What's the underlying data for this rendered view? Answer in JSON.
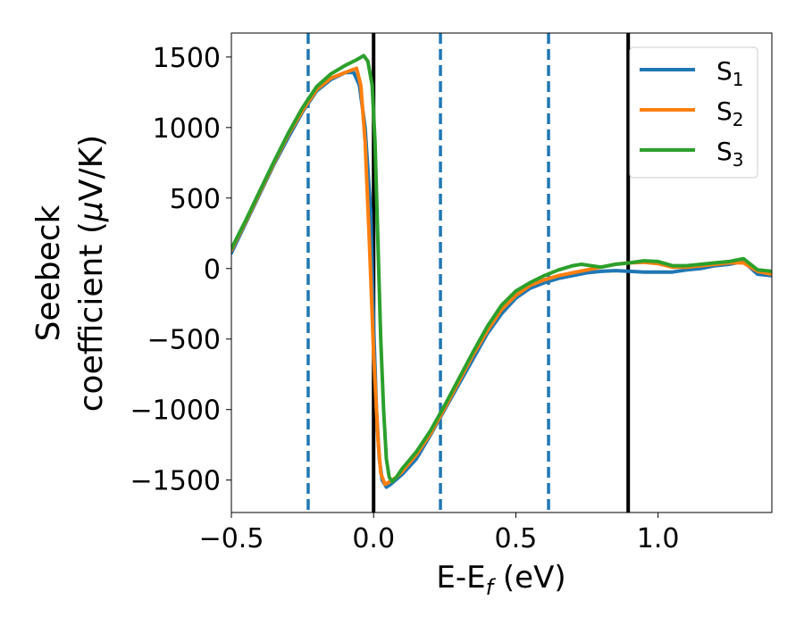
{
  "chart_data": {
    "type": "line",
    "xlabel": "E-E",
    "xlabel_sub": "f",
    "xlabel_unit": " (eV)",
    "ylabel_line1": "Seebeck",
    "ylabel_line2": "coefficient  (",
    "ylabel_mu": "μ",
    "ylabel_unit": "V/K)",
    "xlim": [
      -0.5,
      1.4
    ],
    "ylim": [
      -1730,
      1670
    ],
    "x_ticks": [
      {
        "value": -0.5,
        "label": "−0.5"
      },
      {
        "value": 0.0,
        "label": "0.0"
      },
      {
        "value": 0.5,
        "label": "0.5"
      },
      {
        "value": 1.0,
        "label": "1.0"
      }
    ],
    "y_ticks": [
      {
        "value": 1500,
        "label": "1500"
      },
      {
        "value": 1000,
        "label": "1000"
      },
      {
        "value": 500,
        "label": "500"
      },
      {
        "value": 0,
        "label": "0"
      },
      {
        "value": -500,
        "label": "−500"
      },
      {
        "value": -1000,
        "label": "−1000"
      },
      {
        "value": -1500,
        "label": "−1500"
      }
    ],
    "grid": false,
    "legend_position": "top-right",
    "vertical_lines": [
      {
        "x": -0.23,
        "style": "dashed",
        "color": "#1f77b4"
      },
      {
        "x": 0.0,
        "style": "solid",
        "color": "#000000"
      },
      {
        "x": 0.235,
        "style": "dashed",
        "color": "#1f77b4"
      },
      {
        "x": 0.615,
        "style": "dashed",
        "color": "#1f77b4"
      },
      {
        "x": 0.895,
        "style": "solid",
        "color": "#000000"
      }
    ],
    "series": [
      {
        "name": "S",
        "sub": "1",
        "color": "#1f77b4",
        "points": [
          [
            -0.5,
            110
          ],
          [
            -0.45,
            320
          ],
          [
            -0.4,
            530
          ],
          [
            -0.35,
            740
          ],
          [
            -0.3,
            930
          ],
          [
            -0.25,
            1110
          ],
          [
            -0.2,
            1260
          ],
          [
            -0.15,
            1340
          ],
          [
            -0.1,
            1390
          ],
          [
            -0.07,
            1390
          ],
          [
            -0.05,
            1300
          ],
          [
            -0.03,
            1000
          ],
          [
            -0.01,
            400
          ],
          [
            0.0,
            -400
          ],
          [
            0.01,
            -1000
          ],
          [
            0.02,
            -1350
          ],
          [
            0.03,
            -1500
          ],
          [
            0.045,
            -1550
          ],
          [
            0.06,
            -1530
          ],
          [
            0.1,
            -1460
          ],
          [
            0.15,
            -1350
          ],
          [
            0.2,
            -1180
          ],
          [
            0.25,
            -1000
          ],
          [
            0.3,
            -820
          ],
          [
            0.35,
            -640
          ],
          [
            0.4,
            -460
          ],
          [
            0.45,
            -320
          ],
          [
            0.5,
            -210
          ],
          [
            0.55,
            -140
          ],
          [
            0.6,
            -100
          ],
          [
            0.65,
            -70
          ],
          [
            0.7,
            -50
          ],
          [
            0.75,
            -30
          ],
          [
            0.8,
            -20
          ],
          [
            0.85,
            -15
          ],
          [
            0.9,
            -20
          ],
          [
            0.95,
            -25
          ],
          [
            1.0,
            -25
          ],
          [
            1.05,
            -25
          ],
          [
            1.1,
            -10
          ],
          [
            1.15,
            0
          ],
          [
            1.2,
            20
          ],
          [
            1.25,
            30
          ],
          [
            1.3,
            50
          ],
          [
            1.35,
            -40
          ],
          [
            1.4,
            -50
          ]
        ]
      },
      {
        "name": "S",
        "sub": "2",
        "color": "#ff7f0e",
        "points": [
          [
            -0.5,
            130
          ],
          [
            -0.45,
            330
          ],
          [
            -0.4,
            540
          ],
          [
            -0.35,
            750
          ],
          [
            -0.3,
            950
          ],
          [
            -0.25,
            1120
          ],
          [
            -0.2,
            1270
          ],
          [
            -0.15,
            1350
          ],
          [
            -0.1,
            1390
          ],
          [
            -0.06,
            1420
          ],
          [
            -0.045,
            1300
          ],
          [
            -0.03,
            900
          ],
          [
            -0.015,
            200
          ],
          [
            0.0,
            -600
          ],
          [
            0.015,
            -1200
          ],
          [
            0.025,
            -1450
          ],
          [
            0.04,
            -1530
          ],
          [
            0.05,
            -1520
          ],
          [
            0.08,
            -1480
          ],
          [
            0.1,
            -1440
          ],
          [
            0.15,
            -1320
          ],
          [
            0.2,
            -1170
          ],
          [
            0.25,
            -990
          ],
          [
            0.3,
            -800
          ],
          [
            0.35,
            -610
          ],
          [
            0.4,
            -440
          ],
          [
            0.45,
            -290
          ],
          [
            0.5,
            -190
          ],
          [
            0.55,
            -120
          ],
          [
            0.6,
            -80
          ],
          [
            0.65,
            -50
          ],
          [
            0.7,
            -30
          ],
          [
            0.75,
            -10
          ],
          [
            0.8,
            10
          ],
          [
            0.85,
            30
          ],
          [
            0.9,
            40
          ],
          [
            0.95,
            45
          ],
          [
            1.0,
            35
          ],
          [
            1.05,
            10
          ],
          [
            1.1,
            10
          ],
          [
            1.15,
            20
          ],
          [
            1.2,
            30
          ],
          [
            1.25,
            40
          ],
          [
            1.3,
            40
          ],
          [
            1.35,
            -20
          ],
          [
            1.4,
            -40
          ]
        ]
      },
      {
        "name": "S",
        "sub": "3",
        "color": "#2ca02c",
        "points": [
          [
            -0.5,
            140
          ],
          [
            -0.45,
            340
          ],
          [
            -0.4,
            550
          ],
          [
            -0.35,
            760
          ],
          [
            -0.3,
            960
          ],
          [
            -0.25,
            1140
          ],
          [
            -0.2,
            1290
          ],
          [
            -0.15,
            1380
          ],
          [
            -0.1,
            1440
          ],
          [
            -0.06,
            1480
          ],
          [
            -0.035,
            1510
          ],
          [
            -0.02,
            1470
          ],
          [
            -0.005,
            1300
          ],
          [
            0.005,
            900
          ],
          [
            0.015,
            200
          ],
          [
            0.025,
            -500
          ],
          [
            0.035,
            -1000
          ],
          [
            0.045,
            -1350
          ],
          [
            0.055,
            -1480
          ],
          [
            0.065,
            -1510
          ],
          [
            0.08,
            -1480
          ],
          [
            0.1,
            -1420
          ],
          [
            0.15,
            -1300
          ],
          [
            0.2,
            -1150
          ],
          [
            0.25,
            -970
          ],
          [
            0.3,
            -780
          ],
          [
            0.35,
            -590
          ],
          [
            0.4,
            -410
          ],
          [
            0.45,
            -260
          ],
          [
            0.5,
            -160
          ],
          [
            0.55,
            -100
          ],
          [
            0.6,
            -50
          ],
          [
            0.65,
            -10
          ],
          [
            0.7,
            20
          ],
          [
            0.73,
            30
          ],
          [
            0.8,
            10
          ],
          [
            0.85,
            30
          ],
          [
            0.9,
            40
          ],
          [
            0.95,
            55
          ],
          [
            1.0,
            50
          ],
          [
            1.05,
            20
          ],
          [
            1.1,
            20
          ],
          [
            1.15,
            30
          ],
          [
            1.2,
            40
          ],
          [
            1.25,
            50
          ],
          [
            1.3,
            70
          ],
          [
            1.35,
            -10
          ],
          [
            1.4,
            -20
          ]
        ]
      }
    ]
  }
}
